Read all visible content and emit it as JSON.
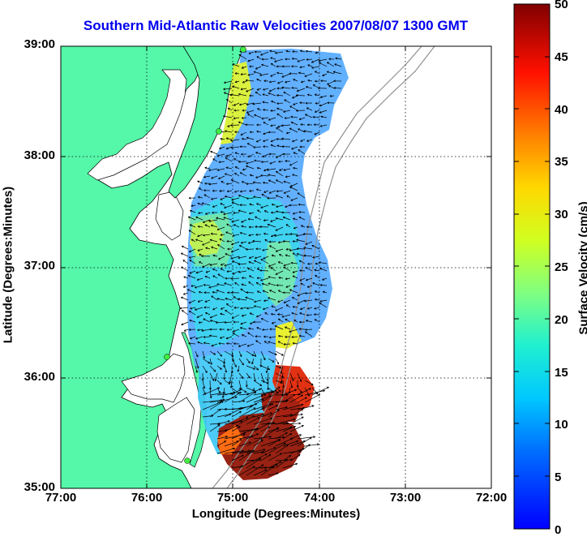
{
  "map": {
    "title": "Southern Mid-Atlantic Raw Velocities 2007/08/07 1300 GMT",
    "xlabel": "Longitude (Degrees:Minutes)",
    "ylabel": "Latitude (Degrees:Minutes)",
    "xticks": [
      "77:00",
      "76:00",
      "75:00",
      "74:00",
      "73:00",
      "72:00"
    ],
    "yticks": [
      "39:00",
      "38:00",
      "37:00",
      "36:00",
      "35:00"
    ],
    "colors": {
      "land": "#55f7a8",
      "coast": "#000000",
      "bathy": "#909090",
      "grid": "#000000"
    }
  },
  "colorbar": {
    "label": "Surface Velocity (cm/s)",
    "ticks": [
      "50",
      "45",
      "40",
      "35",
      "30",
      "25",
      "20",
      "15",
      "10",
      "5",
      "0"
    ],
    "range": [
      0,
      50
    ],
    "colormap": "jet"
  }
}
